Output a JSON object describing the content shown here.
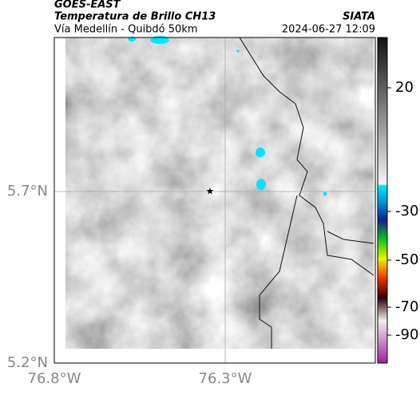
{
  "header": {
    "title": "GOES-EAST",
    "subtitle": "Temperatura de Brillo CH13",
    "source": "SIATA",
    "route": "Vía Medellín - Quibdó 50km",
    "datetime": "2024-06-27 12:09"
  },
  "map": {
    "lat_labels": [
      "5.7°N",
      "5.2°N"
    ],
    "lon_labels": [
      "76.8°W",
      "76.3°W"
    ]
  },
  "colorbar": {
    "ticks": [
      20,
      -30,
      -50,
      -70,
      -90
    ]
  }
}
